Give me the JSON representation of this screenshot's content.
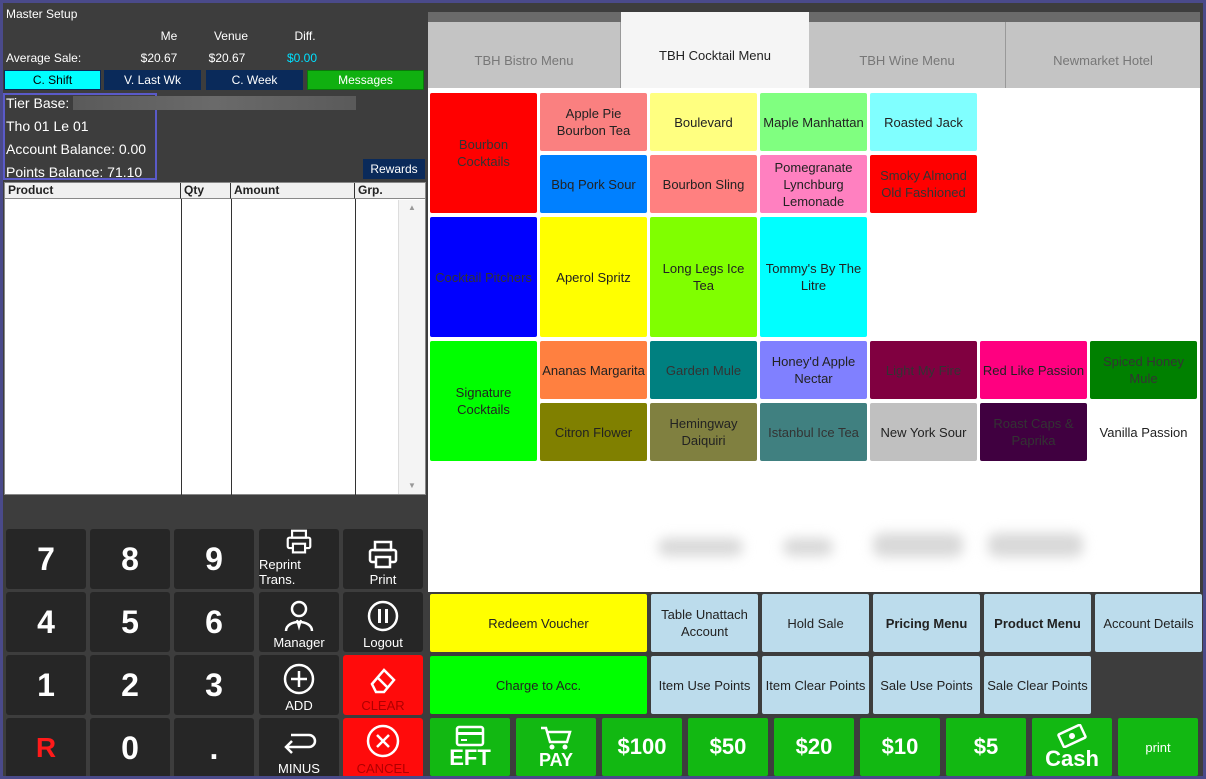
{
  "header": {
    "title": "Master Setup"
  },
  "stats": {
    "col_me": "Me",
    "col_venue": "Venue",
    "col_diff": "Diff.",
    "row_label": "Average Sale:",
    "me": "$20.67",
    "venue": "$20.67",
    "diff": "$0.00"
  },
  "period_buttons": [
    "C. Shift",
    "V. Last Wk",
    "C. Week",
    "Messages"
  ],
  "customer": {
    "tier_base": "Tier Base:",
    "code": "Tho 01 Le 01",
    "account_balance": "Account Balance: 0.00",
    "points_balance": "Points Balance: 71.10",
    "rewards": "Rewards"
  },
  "product_table": {
    "headers": [
      "Product",
      "Qty",
      "Amount",
      "Grp."
    ]
  },
  "keypad": {
    "keys": [
      "7",
      "8",
      "9",
      "4",
      "5",
      "6",
      "1",
      "2",
      "3",
      "R",
      "0",
      "."
    ],
    "functions": {
      "reprint": "Reprint Trans.",
      "print": "Print",
      "manager": "Manager",
      "logout": "Logout",
      "add": "ADD",
      "clear": "CLEAR",
      "minus": "MINUS",
      "cancel": "CANCEL"
    }
  },
  "tabs": [
    "TBH Bistro Menu",
    "TBH Cocktail Menu",
    "TBH Wine Menu",
    "Newmarket Hotel"
  ],
  "menu_items": [
    {
      "label": "Bourbon Cocktails",
      "color": "#ff0000"
    },
    {
      "label": "Apple Pie Bourbon Tea",
      "color": "#fa8080"
    },
    {
      "label": "Boulevard",
      "color": "#ffff80"
    },
    {
      "label": "Maple Manhattan",
      "color": "#80ff80"
    },
    {
      "label": "Roasted Jack",
      "color": "#80ffff"
    },
    {
      "label": "Bbq Pork Sour",
      "color": "#0080ff"
    },
    {
      "label": "Bourbon Sling",
      "color": "#ff8080"
    },
    {
      "label": "Pomegranate Lynchburg Lemonade",
      "color": "#ff80c0"
    },
    {
      "label": "Smoky Almond Old Fashioned",
      "color": "#ff0000"
    },
    {
      "label": "Cocktail Pitchers",
      "color": "#0000ff"
    },
    {
      "label": "Aperol Spritz",
      "color": "#ffff00"
    },
    {
      "label": "Long Legs Ice Tea",
      "color": "#80ff00"
    },
    {
      "label": "Tommy's By The Litre",
      "color": "#00ffff"
    },
    {
      "label": "Signature Cocktails",
      "color": "#00ff00"
    },
    {
      "label": "Ananas Margarita",
      "color": "#ff8040"
    },
    {
      "label": "Garden Mule",
      "color": "#008080"
    },
    {
      "label": "Honey'd Apple Nectar",
      "color": "#8080ff"
    },
    {
      "label": "Light My Fire",
      "color": "#800040"
    },
    {
      "label": "Red Like Passion",
      "color": "#ff0080"
    },
    {
      "label": "Spiced Honey Mule",
      "color": "#008000"
    },
    {
      "label": "Citron Flower",
      "color": "#808000"
    },
    {
      "label": "Hemingway Daiquiri",
      "color": "#808040"
    },
    {
      "label": "Istanbul Ice Tea",
      "color": "#408080"
    },
    {
      "label": "New York Sour",
      "color": "#c0c0c0"
    },
    {
      "label": "Roast Caps & Paprika",
      "color": "#400040"
    },
    {
      "label": "Vanilla Passion",
      "color": "#ffffff"
    }
  ],
  "actions": {
    "redeem_voucher": "Redeem Voucher",
    "table_unattach": "Table Unattach Account",
    "hold_sale": "Hold Sale",
    "pricing_menu": "Pricing Menu",
    "product_menu": "Product Menu",
    "account_details": "Account Details",
    "charge_to_acc": "Charge to Acc.",
    "item_use_points": "Item Use Points",
    "item_clear_points": "Item Clear Points",
    "sale_use_points": "Sale Use Points",
    "sale_clear_points": "Sale Clear Points"
  },
  "payments": {
    "eft": "EFT",
    "pay": "PAY",
    "p100": "$100",
    "p50": "$50",
    "p20": "$20",
    "p10": "$10",
    "p5": "$5",
    "cash": "Cash",
    "print": "print"
  },
  "colors": {
    "cyan": "#00ffff",
    "navy": "#0a2a5a",
    "green": "#12b812",
    "messages": "#10b010",
    "redeem": "#ffff00",
    "charge": "#00ff00",
    "light_blue": "#bcdcec",
    "red": "#ff0b0b"
  }
}
